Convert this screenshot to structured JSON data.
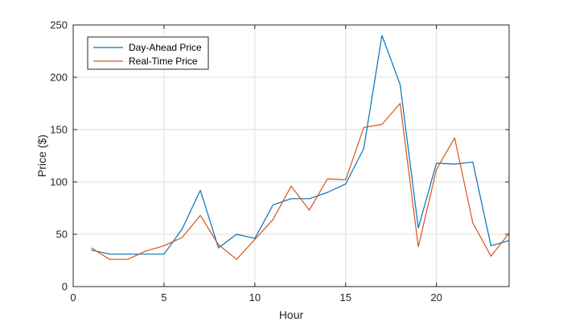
{
  "chart_data": {
    "type": "line",
    "xlabel": "Hour",
    "ylabel": "Price ($)",
    "xlim": [
      0,
      24
    ],
    "ylim": [
      0,
      250
    ],
    "xticks": [
      0,
      5,
      10,
      15,
      20
    ],
    "yticks": [
      0,
      50,
      100,
      150,
      200,
      250
    ],
    "grid": true,
    "legend_position": "top-left",
    "x": [
      1,
      2,
      3,
      4,
      5,
      6,
      7,
      8,
      9,
      10,
      11,
      12,
      13,
      14,
      15,
      16,
      17,
      18,
      19,
      20,
      21,
      22,
      23,
      24
    ],
    "series": [
      {
        "name": "Day-Ahead Price",
        "color": "#0072BD",
        "values": [
          35,
          31,
          31,
          31,
          31,
          55,
          92,
          37,
          50,
          46,
          78,
          84,
          84,
          90,
          98,
          132,
          240,
          193,
          56,
          118,
          117,
          119,
          39,
          44
        ]
      },
      {
        "name": "Real-Time Price",
        "color": "#D95319",
        "values": [
          37,
          26,
          26,
          34,
          39,
          47,
          68,
          40,
          26,
          45,
          64,
          96,
          73,
          103,
          102,
          152,
          155,
          175,
          38,
          112,
          142,
          61,
          29,
          51
        ]
      }
    ]
  }
}
